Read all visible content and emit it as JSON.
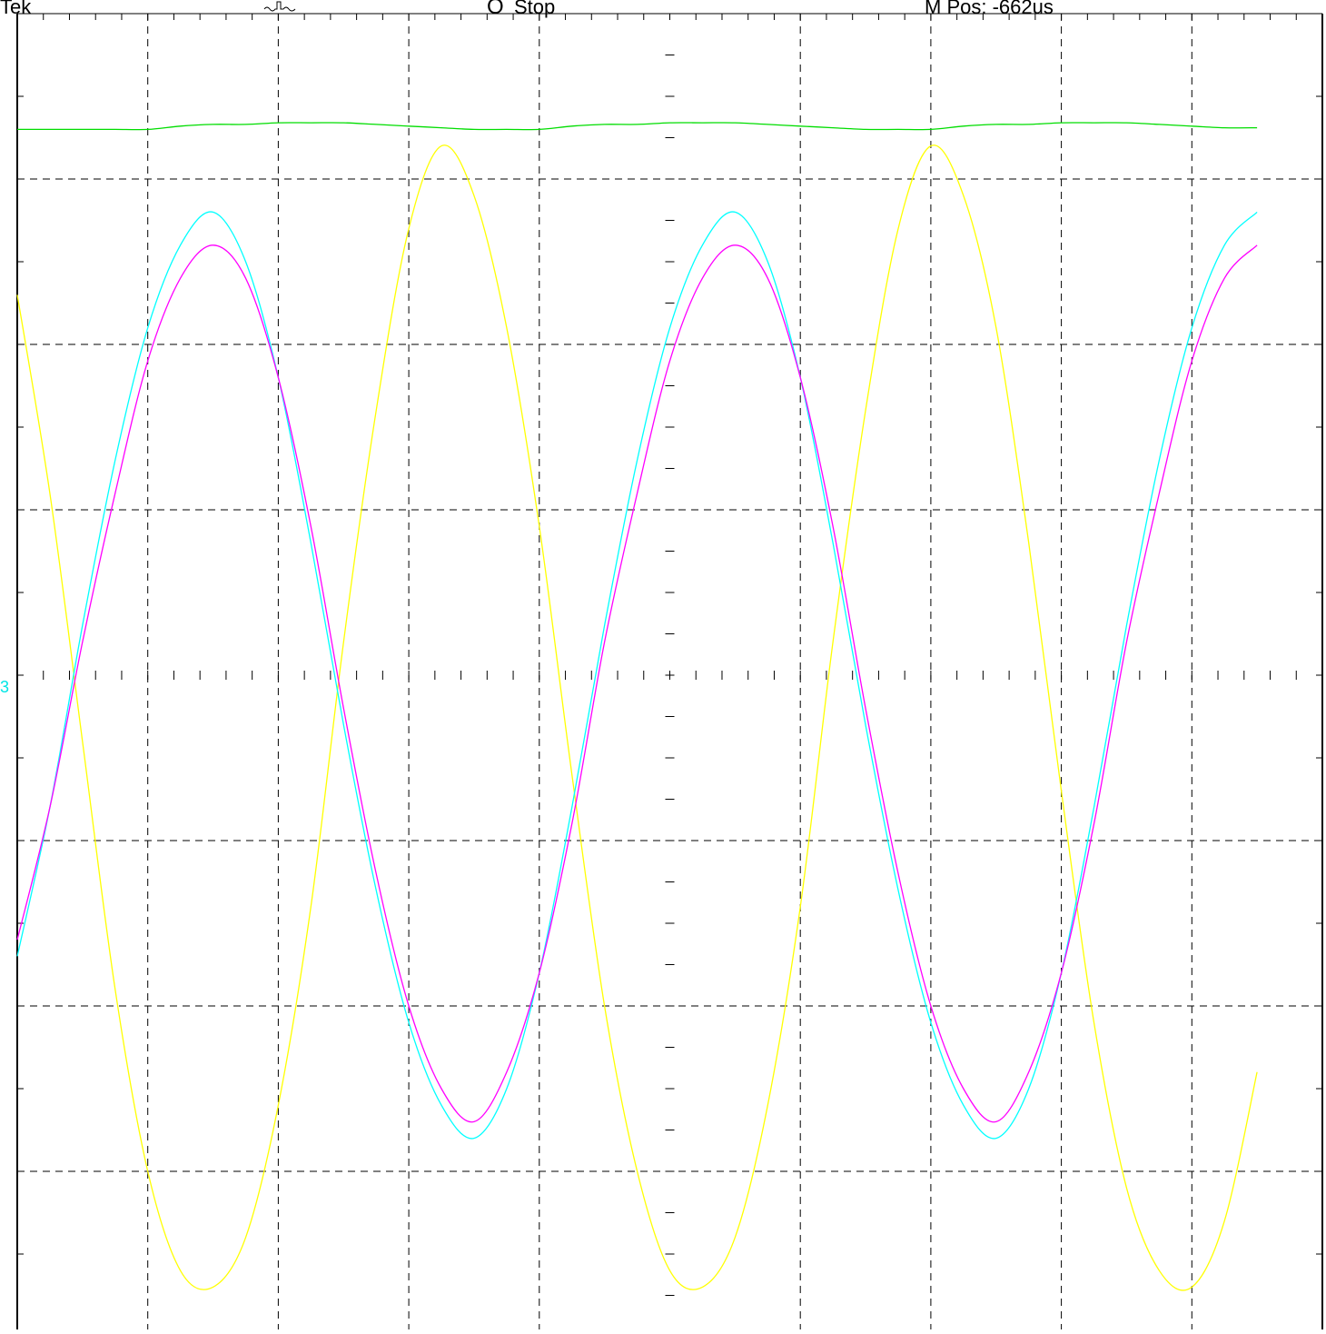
{
  "header": {
    "brand": "Tek",
    "trigger_icon": "trigger-waveform-icon",
    "run_indicator": "O",
    "run_state": "Stop",
    "m_pos": "M Pos: -662us"
  },
  "channel_markers": {
    "label": "3",
    "color": "#00e5e5"
  },
  "colors": {
    "ch1": "#ffff00",
    "ch2": "#00ffff",
    "ch3": "#ff00ff",
    "ch4": "#00dd00",
    "graticule": "#000000"
  },
  "chart_data": {
    "type": "line",
    "x": [
      0,
      0.25,
      0.5,
      0.75,
      1,
      1.25,
      1.5,
      1.75,
      2,
      2.25,
      2.5,
      2.75,
      3,
      3.25,
      3.5,
      3.75,
      4,
      4.25,
      4.5,
      4.75,
      5,
      5.25,
      5.5,
      5.75,
      6,
      6.25,
      6.5,
      6.75,
      7,
      7.25,
      7.5,
      7.75,
      8,
      8.25,
      8.5,
      8.75,
      9,
      9.25,
      9.5
    ],
    "xlim": [
      0,
      10
    ],
    "ylim": [
      -4,
      4
    ],
    "grid": true,
    "series": [
      {
        "key": "ch1",
        "values": [
          2.3,
          1.1,
          -0.4,
          -1.9,
          -3.0,
          -3.6,
          -3.7,
          -3.4,
          -2.6,
          -1.4,
          0.2,
          1.6,
          2.7,
          3.2,
          2.9,
          2.1,
          0.9,
          -0.6,
          -2.0,
          -3.0,
          -3.6,
          -3.7,
          -3.4,
          -2.6,
          -1.4,
          0.2,
          1.6,
          2.7,
          3.2,
          2.9,
          2.1,
          0.8,
          -0.7,
          -2.1,
          -3.1,
          -3.6,
          -3.7,
          -3.3,
          -2.4
        ]
      },
      {
        "key": "ch2",
        "values": [
          -1.7,
          -0.8,
          0.3,
          1.3,
          2.1,
          2.6,
          2.8,
          2.5,
          1.8,
          0.8,
          -0.3,
          -1.3,
          -2.1,
          -2.6,
          -2.8,
          -2.5,
          -1.8,
          -0.8,
          0.3,
          1.3,
          2.1,
          2.6,
          2.8,
          2.5,
          1.8,
          0.8,
          -0.3,
          -1.3,
          -2.1,
          -2.6,
          -2.8,
          -2.5,
          -1.8,
          -0.8,
          0.3,
          1.3,
          2.1,
          2.6,
          2.8
        ]
      },
      {
        "key": "ch3",
        "values": [
          -1.6,
          -0.8,
          0.2,
          1.1,
          1.9,
          2.4,
          2.6,
          2.4,
          1.8,
          0.9,
          -0.2,
          -1.2,
          -2.0,
          -2.5,
          -2.7,
          -2.4,
          -1.8,
          -0.9,
          0.2,
          1.1,
          1.9,
          2.4,
          2.6,
          2.4,
          1.8,
          0.9,
          -0.2,
          -1.2,
          -2.0,
          -2.5,
          -2.7,
          -2.4,
          -1.8,
          -0.9,
          0.2,
          1.1,
          1.9,
          2.4,
          2.6
        ]
      },
      {
        "key": "ch4",
        "values": [
          3.3,
          3.3,
          3.3,
          3.3,
          3.3,
          3.32,
          3.33,
          3.33,
          3.34,
          3.34,
          3.34,
          3.33,
          3.32,
          3.31,
          3.3,
          3.3,
          3.3,
          3.32,
          3.33,
          3.33,
          3.34,
          3.34,
          3.34,
          3.33,
          3.32,
          3.31,
          3.3,
          3.3,
          3.3,
          3.32,
          3.33,
          3.33,
          3.34,
          3.34,
          3.34,
          3.33,
          3.32,
          3.31,
          3.31
        ]
      }
    ]
  }
}
